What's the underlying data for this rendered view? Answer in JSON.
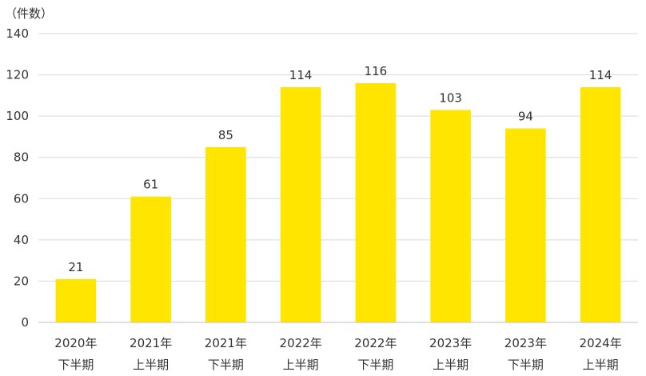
{
  "chart_data": {
    "type": "bar",
    "ylabel": "（件数）",
    "categories": [
      [
        "2020年",
        "下半期"
      ],
      [
        "2021年",
        "上半期"
      ],
      [
        "2021年",
        "下半期"
      ],
      [
        "2022年",
        "上半期"
      ],
      [
        "2022年",
        "下半期"
      ],
      [
        "2023年",
        "上半期"
      ],
      [
        "2023年",
        "下半期"
      ],
      [
        "2024年",
        "上半期"
      ]
    ],
    "values": [
      21,
      61,
      85,
      114,
      116,
      103,
      94,
      114
    ],
    "ylim": [
      0,
      140
    ],
    "yticks": [
      0,
      20,
      40,
      60,
      80,
      100,
      120,
      140
    ],
    "grid": true,
    "legend": "none",
    "bar_color": "#FFE500",
    "grid_color": "#D9D9D9",
    "axis_color": "#BFBFBF"
  }
}
